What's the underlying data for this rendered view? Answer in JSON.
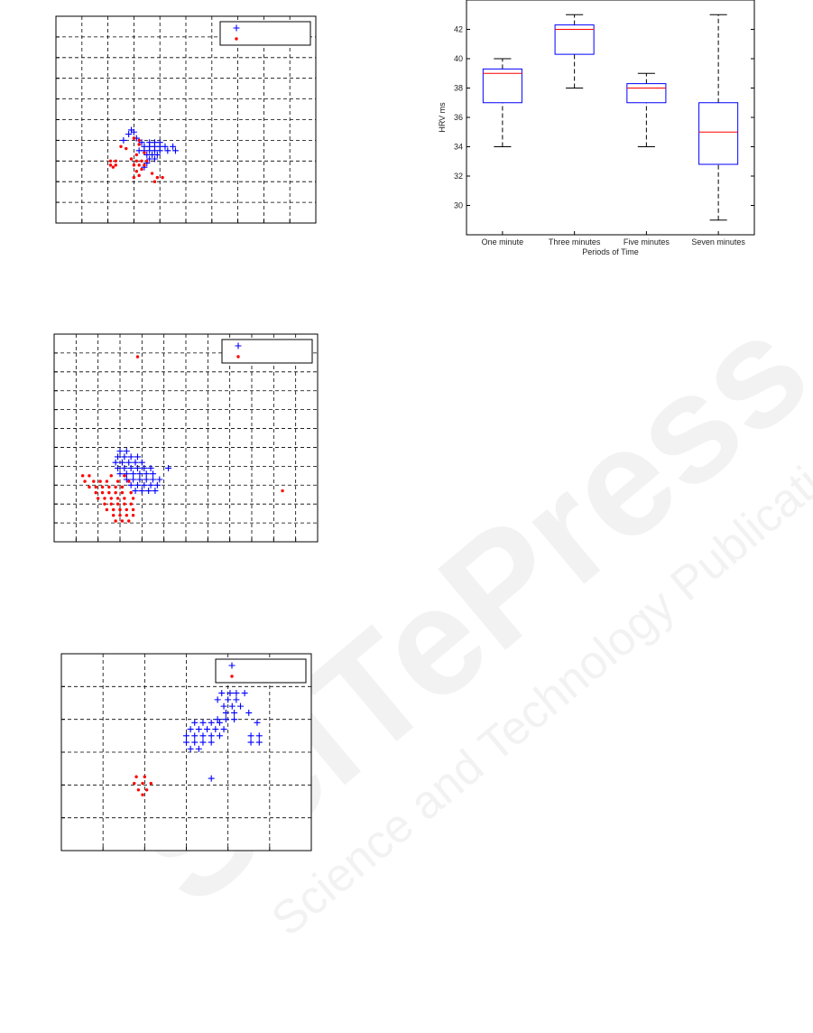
{
  "chart_data": [
    {
      "type": "scatter",
      "xlim": [
        0,
        10
      ],
      "ylim": [
        0,
        10
      ],
      "xticks": [
        0,
        1,
        2,
        3,
        4,
        5,
        6,
        7,
        8,
        9,
        10
      ],
      "yticks": [
        0,
        1,
        2,
        3,
        4,
        5,
        6,
        7,
        8,
        9,
        10
      ],
      "grid": true,
      "tick_labels": false,
      "legend": "upper right",
      "series": [
        {
          "marker": "+",
          "color": "#0000ff",
          "x": [
            2.9,
            3.0,
            2.8,
            3.1,
            2.6,
            3.3,
            3.6,
            3.8,
            4.0,
            3.4,
            3.6,
            3.8,
            4.0,
            4.2,
            4.5,
            3.2,
            3.4,
            3.6,
            3.8,
            4.0,
            4.3,
            4.6,
            3.5,
            3.7,
            3.9,
            3.6,
            3.8,
            3.4,
            3.5
          ],
          "values": [
            4.5,
            4.4,
            4.3,
            4.1,
            4.0,
            3.9,
            3.9,
            3.9,
            3.9,
            3.7,
            3.7,
            3.7,
            3.7,
            3.7,
            3.7,
            3.5,
            3.5,
            3.5,
            3.5,
            3.5,
            3.5,
            3.5,
            3.3,
            3.3,
            3.3,
            3.1,
            3.1,
            2.7,
            2.9
          ]
        },
        {
          "marker": ".",
          "color": "#ff0000",
          "x": [
            3.0,
            3.2,
            2.5,
            2.7,
            3.2,
            3.4,
            3.1,
            2.1,
            2.3,
            2.1,
            2.3,
            2.2,
            2.9,
            3.1,
            3.3,
            3.5,
            3.0,
            3.2,
            3.4,
            3.1,
            3.3,
            3.0,
            3.2,
            3.7,
            3.9,
            4.1,
            3.8
          ],
          "values": [
            4.1,
            4.0,
            3.7,
            3.6,
            3.8,
            3.4,
            3.3,
            3.0,
            3.0,
            2.8,
            2.8,
            2.7,
            3.1,
            3.0,
            3.0,
            3.0,
            2.8,
            2.8,
            2.8,
            2.5,
            2.6,
            2.2,
            2.3,
            2.4,
            2.2,
            2.2,
            2.0
          ]
        }
      ]
    },
    {
      "type": "scatter",
      "xlim": [
        0,
        12
      ],
      "ylim": [
        0,
        11
      ],
      "xticks": [
        0,
        1,
        2,
        3,
        4,
        5,
        6,
        7,
        8,
        9,
        10,
        11,
        12
      ],
      "yticks": [
        0,
        1,
        2,
        3,
        4,
        5,
        6,
        7,
        8,
        9,
        10,
        11
      ],
      "grid": true,
      "tick_labels": false,
      "legend": "upper right",
      "series": [
        {
          "marker": "+",
          "color": "#0000ff",
          "x": [
            3.0,
            3.3,
            2.9,
            3.2,
            3.5,
            3.8,
            2.8,
            3.1,
            3.4,
            3.7,
            4.0,
            2.9,
            3.2,
            3.5,
            3.8,
            4.1,
            4.4,
            5.2,
            3.0,
            3.3,
            3.6,
            3.9,
            4.2,
            4.5,
            3.3,
            3.6,
            3.9,
            4.2,
            4.5,
            4.8,
            3.5,
            3.8,
            4.1,
            4.4,
            4.7,
            3.7,
            4.0,
            4.3,
            4.6
          ],
          "values": [
            4.8,
            4.8,
            4.5,
            4.5,
            4.5,
            4.5,
            4.2,
            4.2,
            4.2,
            4.2,
            4.2,
            3.9,
            3.9,
            3.9,
            3.9,
            3.9,
            3.9,
            3.9,
            3.6,
            3.6,
            3.6,
            3.6,
            3.6,
            3.6,
            3.3,
            3.3,
            3.3,
            3.3,
            3.3,
            3.3,
            3.0,
            3.0,
            3.0,
            3.0,
            3.0,
            2.7,
            2.7,
            2.7,
            2.7
          ]
        },
        {
          "marker": ".",
          "color": "#ff0000",
          "x": [
            1.3,
            1.6,
            2.6,
            3.2,
            1.4,
            1.8,
            2.1,
            2.4,
            2.9,
            3.4,
            1.6,
            1.9,
            2.2,
            2.5,
            2.8,
            3.1,
            1.9,
            2.2,
            2.5,
            2.8,
            3.1,
            3.5,
            2.0,
            2.3,
            2.6,
            2.9,
            3.2,
            3.6,
            2.3,
            2.6,
            2.9,
            3.2,
            3.5,
            2.4,
            2.7,
            3.0,
            3.3,
            3.6,
            2.7,
            3.0,
            3.3,
            3.6,
            2.8,
            3.1,
            3.4,
            3.8,
            10.4
          ],
          "values": [
            3.5,
            3.5,
            3.5,
            3.5,
            3.2,
            3.2,
            3.2,
            3.2,
            3.2,
            3.2,
            2.9,
            2.9,
            2.9,
            2.9,
            2.9,
            2.9,
            2.6,
            2.6,
            2.6,
            2.6,
            2.6,
            2.6,
            2.3,
            2.3,
            2.3,
            2.3,
            2.3,
            2.3,
            2.0,
            2.0,
            2.0,
            2.0,
            2.0,
            1.7,
            1.7,
            1.7,
            1.7,
            1.7,
            1.4,
            1.4,
            1.4,
            1.4,
            1.1,
            1.1,
            1.1,
            9.8,
            2.7
          ]
        }
      ]
    },
    {
      "type": "scatter",
      "xlim": [
        0,
        6
      ],
      "ylim": [
        0,
        6
      ],
      "xticks": [
        0,
        1,
        2,
        3,
        4,
        5,
        6
      ],
      "yticks": [
        0,
        1,
        2,
        3,
        4,
        5,
        6
      ],
      "grid": true,
      "tick_labels": false,
      "legend": "upper right",
      "series": [
        {
          "marker": "+",
          "color": "#0000ff",
          "x": [
            3.85,
            4.05,
            4.2,
            4.4,
            3.75,
            4.0,
            4.2,
            3.9,
            4.1,
            4.3,
            3.95,
            4.15,
            4.5,
            3.75,
            3.95,
            4.15,
            3.2,
            3.4,
            3.6,
            3.8,
            4.7,
            3.1,
            3.3,
            3.5,
            3.7,
            3.9,
            3.0,
            3.2,
            3.4,
            3.6,
            3.8,
            4.55,
            4.75,
            3.0,
            3.2,
            3.4,
            3.6,
            4.55,
            4.75,
            3.1,
            3.3,
            3.6
          ],
          "values": [
            4.8,
            4.8,
            4.8,
            4.8,
            4.6,
            4.6,
            4.6,
            4.4,
            4.4,
            4.4,
            4.2,
            4.2,
            4.2,
            4.0,
            4.0,
            4.0,
            3.9,
            3.9,
            3.9,
            3.9,
            3.9,
            3.7,
            3.7,
            3.7,
            3.7,
            3.7,
            3.5,
            3.5,
            3.5,
            3.5,
            3.5,
            3.5,
            3.5,
            3.3,
            3.3,
            3.3,
            3.3,
            3.3,
            3.3,
            3.1,
            3.1,
            2.2
          ]
        },
        {
          "marker": ".",
          "color": "#ff0000",
          "x": [
            1.8,
            2.0,
            1.75,
            1.95,
            2.15,
            1.85,
            2.05,
            1.95
          ],
          "values": [
            2.25,
            2.25,
            2.05,
            2.05,
            2.05,
            1.85,
            1.85,
            1.7
          ]
        }
      ]
    },
    {
      "type": "box",
      "ylabel": "HRV ms",
      "xlabel": "Periods of Time",
      "ylim": [
        28,
        44
      ],
      "yticks": [
        30,
        32,
        34,
        36,
        38,
        40,
        42
      ],
      "box_color": "#0000ff",
      "median_color": "#ff0000",
      "whisker_color": "#000000",
      "categories": [
        "One minute",
        "Three minutes",
        "Five minutes",
        "Seven minutes"
      ],
      "boxes": [
        {
          "whislo": 34,
          "q1": 37,
          "med": 39,
          "q3": 39.3,
          "whishi": 40
        },
        {
          "whislo": 38,
          "q1": 40.3,
          "med": 42,
          "q3": 42.3,
          "whishi": 43
        },
        {
          "whislo": 34,
          "q1": 37,
          "med": 38,
          "q3": 38.3,
          "whishi": 39
        },
        {
          "whislo": 29,
          "q1": 32.8,
          "med": 35,
          "q3": 37,
          "whishi": 43
        }
      ]
    }
  ],
  "watermark": {
    "title": "SciTePress",
    "subtitle": "Science and Technology Publications"
  }
}
